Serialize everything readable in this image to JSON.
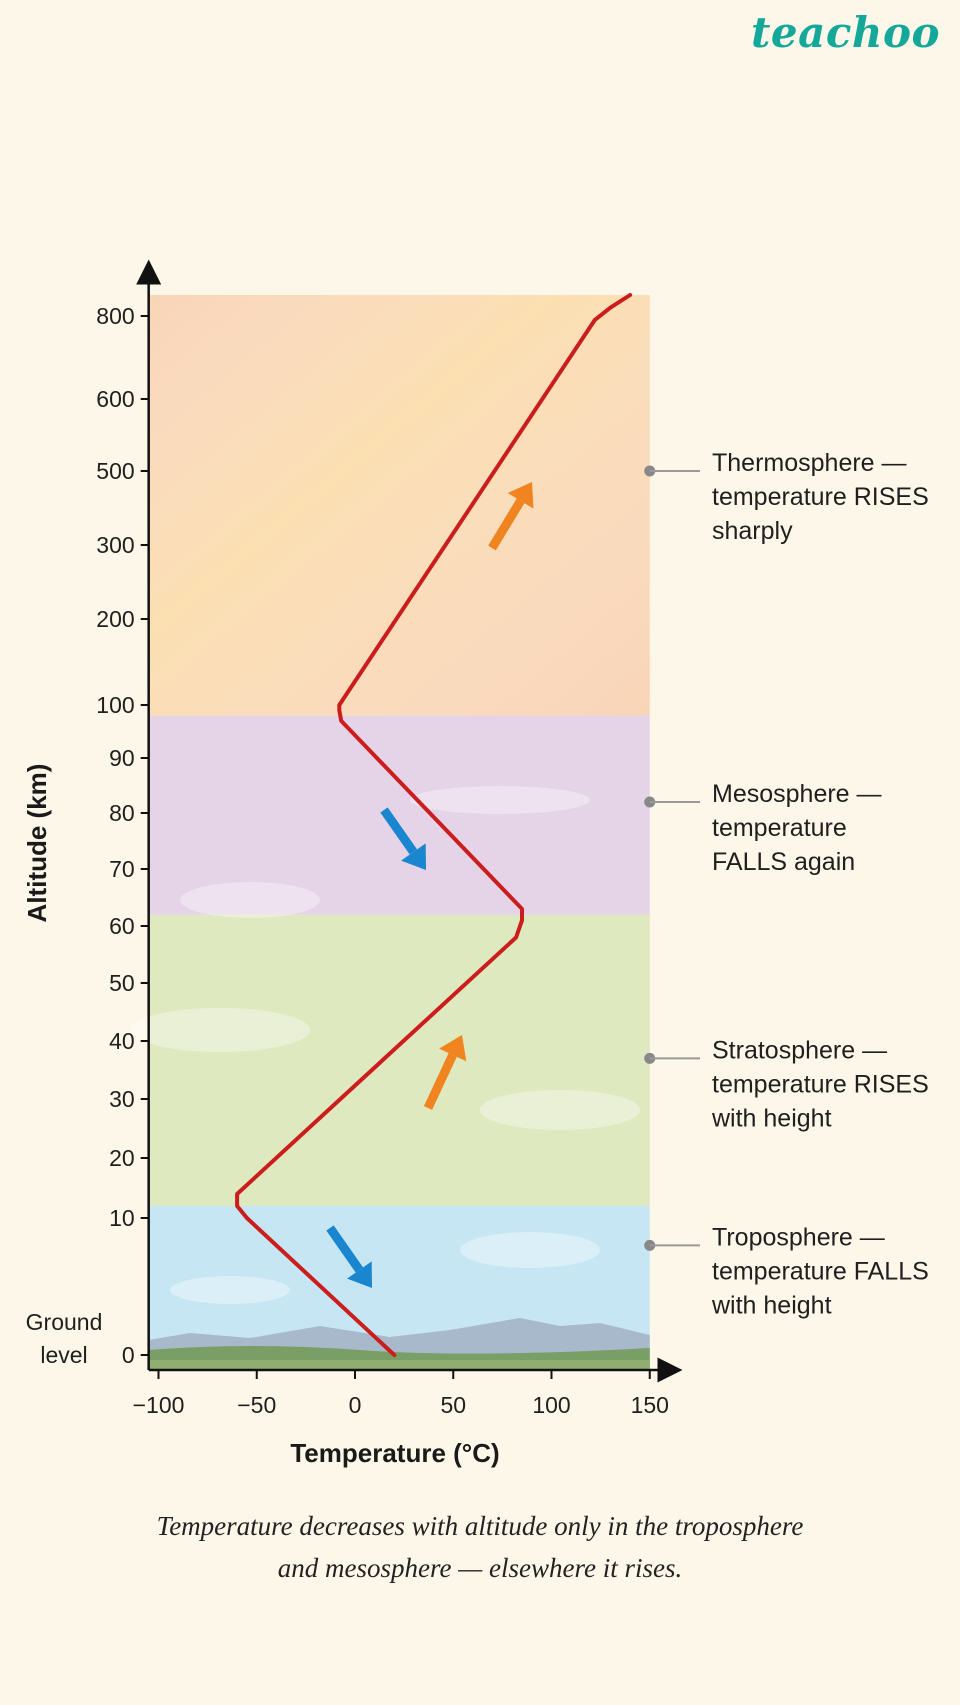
{
  "logo": "teachoo",
  "caption": {
    "line1": "Temperature decreases with altitude only in the troposphere",
    "line2": "and mesosphere — elsewhere it rises."
  },
  "chart_data": {
    "type": "line",
    "xlabel": "Temperature (°C)",
    "ylabel": "Altitude (km)",
    "x_ticks": [
      {
        "value": -100,
        "label": "−100"
      },
      {
        "value": -50,
        "label": "−50"
      },
      {
        "value": 0,
        "label": "0"
      },
      {
        "value": 50,
        "label": "50"
      },
      {
        "value": 100,
        "label": "100"
      },
      {
        "value": 150,
        "label": "150"
      }
    ],
    "xlim": [
      -105,
      150
    ],
    "y_ticks": [
      "0",
      "10",
      "20",
      "30",
      "40",
      "50",
      "60",
      "70",
      "80",
      "90",
      "100",
      "200",
      "300",
      "500",
      "600",
      "800"
    ],
    "y_ground_label": [
      "Ground",
      "level"
    ],
    "layers": [
      {
        "name": "troposphere",
        "from": "0",
        "to": "~12",
        "color": "#c6e6f3"
      },
      {
        "name": "stratosphere",
        "from": "~12",
        "to": "~62",
        "color": "#dfe9bf"
      },
      {
        "name": "mesosphere",
        "from": "~62",
        "to": "~98",
        "color": "#e5d3e8"
      },
      {
        "name": "thermosphere",
        "from": "~98",
        "to": "850",
        "color": "#f9d5b7"
      }
    ],
    "curve_color": "#cc1d1d",
    "series": [
      {
        "x": [
          20,
          -55,
          -60,
          -60,
          82,
          85,
          85,
          -7,
          -8,
          -8,
          122,
          130,
          140
        ],
        "y": [
          "0",
          "10",
          "12",
          "14",
          "58",
          "61",
          "63",
          "97",
          "99",
          "100",
          "790",
          "820",
          "850"
        ]
      }
    ],
    "arrows": [
      {
        "layer": "troposphere",
        "direction": "down",
        "color": "#1a86cf"
      },
      {
        "layer": "stratosphere",
        "direction": "up",
        "color": "#f08420"
      },
      {
        "layer": "mesosphere",
        "direction": "down",
        "color": "#1a86cf"
      },
      {
        "layer": "thermosphere",
        "direction": "up",
        "color": "#f08420"
      }
    ],
    "annotations": [
      {
        "layer": "thermosphere",
        "at": "500",
        "lines": [
          "Thermosphere —",
          "temperature RISES",
          "sharply"
        ]
      },
      {
        "layer": "mesosphere",
        "at": "82",
        "lines": [
          "Mesosphere —",
          "temperature",
          "FALLS again"
        ]
      },
      {
        "layer": "stratosphere",
        "at": "37",
        "lines": [
          "Stratosphere —",
          "temperature RISES",
          "with height"
        ]
      },
      {
        "layer": "troposphere",
        "at": "~8",
        "lines": [
          "Troposphere —",
          "temperature FALLS",
          "with height"
        ]
      }
    ]
  }
}
